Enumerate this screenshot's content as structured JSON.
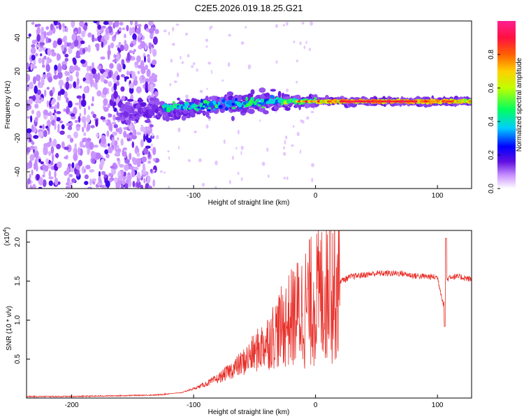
{
  "title": "C2E5.2026.019.18.25.G21",
  "chart_data": [
    {
      "type": "heatmap",
      "xlabel": "Height of straight line (km)",
      "ylabel": "Frequency (Hz)",
      "xlim": [
        -237,
        128
      ],
      "ylim": [
        -50,
        50
      ],
      "xticks": [
        -200,
        -100,
        0,
        100
      ],
      "yticks": [
        -40,
        -20,
        0,
        20,
        40
      ],
      "colorbar": {
        "label": "Normalized spectral amplitude",
        "range": [
          0,
          1
        ],
        "ticks": [
          "0.0",
          "0.2",
          "0.4",
          "0.6",
          "0.8"
        ],
        "tick_values": [
          0,
          0.2,
          0.4,
          0.6,
          0.8
        ],
        "colors": [
          "#ffffff",
          "#c890ff",
          "#6010e0",
          "#0000ff",
          "#00ccff",
          "#00ff60",
          "#c0ff00",
          "#ffd000",
          "#ff6000",
          "#ff1040",
          "#ff2090"
        ]
      },
      "features": {
        "noise_region_x": [
          -237,
          -130
        ],
        "band_center_hz": 2,
        "band_end_x": 128
      }
    },
    {
      "type": "line",
      "xlabel": "Height of straight line (km)",
      "ylabel": "SNR (10 * v/v)",
      "multiplier_label": "(x10",
      "multiplier_exp": "4",
      "xlim": [
        -237,
        128
      ],
      "ylim": [
        0,
        2.15
      ],
      "xticks": [
        -200,
        -100,
        0,
        100
      ],
      "yticks": [
        0.5,
        1.0,
        1.5,
        2.0
      ],
      "ytick_labels": [
        "0.5",
        "1.0",
        "1.5",
        "2.0"
      ],
      "color": "#e8302a",
      "series": [
        {
          "name": "SNR",
          "x": [
            -237,
            -200,
            -160,
            -130,
            -110,
            -100,
            -90,
            -80,
            -70,
            -60,
            -50,
            -40,
            -30,
            -20,
            -10,
            0,
            10,
            20,
            30,
            40,
            50,
            60,
            70,
            80,
            90,
            100,
            105,
            107,
            110,
            120,
            128
          ],
          "y": [
            0.02,
            0.02,
            0.03,
            0.04,
            0.07,
            0.12,
            0.18,
            0.25,
            0.35,
            0.45,
            0.58,
            0.72,
            0.88,
            1.02,
            1.15,
            1.28,
            1.4,
            1.5,
            1.56,
            1.58,
            1.6,
            1.6,
            1.6,
            1.57,
            1.56,
            1.55,
            1.2,
            1.5,
            1.56,
            1.55,
            1.52
          ]
        }
      ],
      "annotations": [
        {
          "x": 12,
          "y": 2.15,
          "note": "spike"
        },
        {
          "x": 107,
          "y": 2.05,
          "note": "spike"
        },
        {
          "x": 106,
          "y": 0.92,
          "note": "dip"
        }
      ]
    }
  ]
}
